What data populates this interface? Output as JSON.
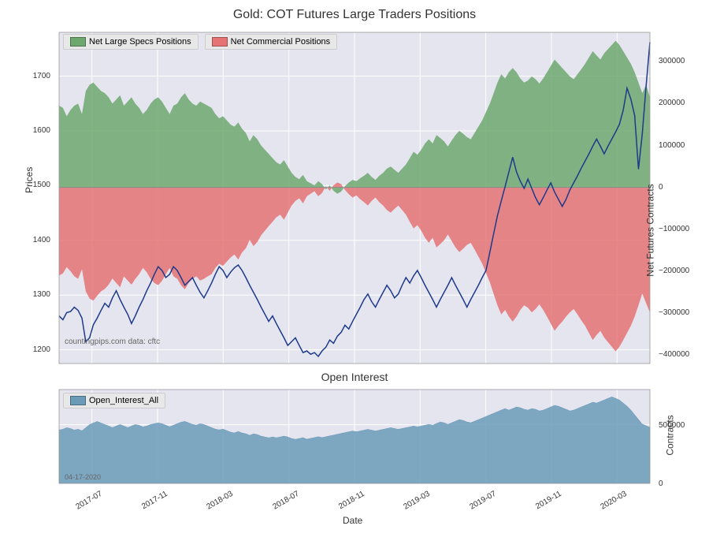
{
  "main_chart": {
    "title": "Gold: COT Futures Large Traders Positions",
    "type": "area+line",
    "ylabel_left": "Prices",
    "ylabel_right": "Net Futures Contracts",
    "background_color": "#e5e5ef",
    "grid_color": "#ffffff",
    "left_ylim": [
      1175,
      1780
    ],
    "left_yticks": [
      1200,
      1300,
      1400,
      1500,
      1600,
      1700
    ],
    "right_ylim": [
      -420000,
      370000
    ],
    "right_yticks": [
      -400000,
      -300000,
      -200000,
      -100000,
      0,
      100000,
      200000,
      300000
    ],
    "right_ytick_labels": [
      "−400000",
      "−300000",
      "−200000",
      "−100000",
      "0",
      "100000",
      "200000",
      "300000"
    ],
    "xticks": [
      "2017-07",
      "2017-11",
      "2018-03",
      "2018-07",
      "2018-11",
      "2019-03",
      "2019-07",
      "2019-11",
      "2020-03"
    ],
    "watermark": "countingpips.com    data: cftc",
    "legend": {
      "specs": {
        "label": "Net Large Specs Positions",
        "color": "#6fa86f"
      },
      "comm": {
        "label": "Net Commercial Positions",
        "color": "#e57373"
      }
    },
    "specs_area": {
      "color": "#6fa86f",
      "opacity": 0.85,
      "values": [
        195000,
        190000,
        170000,
        185000,
        195000,
        200000,
        175000,
        230000,
        245000,
        250000,
        240000,
        230000,
        225000,
        215000,
        200000,
        210000,
        220000,
        195000,
        205000,
        215000,
        200000,
        190000,
        175000,
        185000,
        200000,
        210000,
        215000,
        205000,
        190000,
        175000,
        195000,
        200000,
        215000,
        225000,
        210000,
        200000,
        195000,
        205000,
        200000,
        195000,
        190000,
        175000,
        165000,
        170000,
        160000,
        150000,
        145000,
        155000,
        140000,
        130000,
        110000,
        125000,
        115000,
        100000,
        90000,
        80000,
        70000,
        60000,
        55000,
        65000,
        50000,
        35000,
        25000,
        20000,
        30000,
        15000,
        10000,
        5000,
        15000,
        8000,
        -5000,
        5000,
        -8000,
        -15000,
        -10000,
        3000,
        12000,
        18000,
        15000,
        22000,
        28000,
        35000,
        25000,
        18000,
        28000,
        35000,
        45000,
        50000,
        42000,
        35000,
        45000,
        55000,
        70000,
        85000,
        78000,
        90000,
        105000,
        115000,
        105000,
        125000,
        118000,
        110000,
        98000,
        112000,
        125000,
        135000,
        128000,
        120000,
        115000,
        130000,
        145000,
        160000,
        180000,
        200000,
        225000,
        250000,
        270000,
        260000,
        275000,
        285000,
        275000,
        260000,
        250000,
        255000,
        265000,
        258000,
        248000,
        260000,
        275000,
        290000,
        305000,
        295000,
        285000,
        275000,
        265000,
        258000,
        270000,
        282000,
        295000,
        310000,
        325000,
        315000,
        305000,
        320000,
        330000,
        340000,
        350000,
        340000,
        325000,
        310000,
        295000,
        275000,
        250000,
        225000,
        245000,
        215000
      ]
    },
    "comm_area": {
      "color": "#e57373",
      "opacity": 0.85,
      "values": [
        -210000,
        -205000,
        -190000,
        -200000,
        -212000,
        -218000,
        -195000,
        -248000,
        -265000,
        -270000,
        -258000,
        -248000,
        -242000,
        -232000,
        -217000,
        -228000,
        -238000,
        -212000,
        -222000,
        -232000,
        -218000,
        -207000,
        -192000,
        -202000,
        -218000,
        -228000,
        -233000,
        -223000,
        -207000,
        -192000,
        -212000,
        -218000,
        -233000,
        -243000,
        -228000,
        -218000,
        -212000,
        -222000,
        -218000,
        -212000,
        -207000,
        -192000,
        -182000,
        -187000,
        -177000,
        -167000,
        -160000,
        -172000,
        -155000,
        -145000,
        -125000,
        -140000,
        -130000,
        -114000,
        -103000,
        -92000,
        -82000,
        -71000,
        -65000,
        -77000,
        -60000,
        -43000,
        -32000,
        -26000,
        -38000,
        -21000,
        -15000,
        -9000,
        -21000,
        -13000,
        3000,
        -8000,
        5000,
        12000,
        8000,
        -6000,
        -16000,
        -24000,
        -19000,
        -28000,
        -35000,
        -43000,
        -32000,
        -24000,
        -35000,
        -43000,
        -54000,
        -60000,
        -51000,
        -43000,
        -54000,
        -65000,
        -82000,
        -98000,
        -90000,
        -103000,
        -120000,
        -132000,
        -120000,
        -143000,
        -135000,
        -126000,
        -112000,
        -128000,
        -143000,
        -154000,
        -146000,
        -137000,
        -132000,
        -148000,
        -165000,
        -182000,
        -204000,
        -226000,
        -254000,
        -281000,
        -303000,
        -292000,
        -308000,
        -320000,
        -308000,
        -292000,
        -281000,
        -287000,
        -298000,
        -290000,
        -279000,
        -292000,
        -308000,
        -325000,
        -342000,
        -330000,
        -320000,
        -308000,
        -298000,
        -290000,
        -303000,
        -317000,
        -330000,
        -347000,
        -364000,
        -352000,
        -342000,
        -358000,
        -369000,
        -380000,
        -391000,
        -380000,
        -364000,
        -347000,
        -330000,
        -308000,
        -281000,
        -253000,
        -276000,
        -298000
      ]
    },
    "price_line": {
      "color": "#1e3a8a",
      "width": 1.5,
      "values": [
        1262,
        1255,
        1268,
        1270,
        1278,
        1272,
        1258,
        1215,
        1222,
        1246,
        1258,
        1272,
        1285,
        1278,
        1295,
        1308,
        1292,
        1278,
        1265,
        1248,
        1262,
        1278,
        1292,
        1308,
        1322,
        1338,
        1352,
        1345,
        1332,
        1338,
        1352,
        1345,
        1332,
        1318,
        1325,
        1332,
        1318,
        1305,
        1295,
        1308,
        1322,
        1338,
        1352,
        1345,
        1332,
        1342,
        1350,
        1355,
        1345,
        1332,
        1318,
        1305,
        1292,
        1278,
        1265,
        1252,
        1262,
        1248,
        1235,
        1222,
        1208,
        1215,
        1222,
        1208,
        1195,
        1198,
        1192,
        1195,
        1188,
        1198,
        1205,
        1218,
        1212,
        1225,
        1232,
        1245,
        1238,
        1252,
        1265,
        1278,
        1292,
        1302,
        1288,
        1278,
        1292,
        1305,
        1318,
        1308,
        1295,
        1302,
        1318,
        1332,
        1322,
        1335,
        1345,
        1332,
        1318,
        1305,
        1292,
        1278,
        1292,
        1305,
        1318,
        1332,
        1318,
        1305,
        1292,
        1278,
        1292,
        1305,
        1318,
        1332,
        1345,
        1378,
        1412,
        1445,
        1472,
        1498,
        1525,
        1552,
        1525,
        1508,
        1495,
        1512,
        1495,
        1478,
        1465,
        1478,
        1492,
        1505,
        1488,
        1475,
        1462,
        1475,
        1492,
        1505,
        1518,
        1532,
        1545,
        1558,
        1572,
        1585,
        1572,
        1558,
        1572,
        1585,
        1598,
        1612,
        1638,
        1678,
        1658,
        1628,
        1530,
        1595,
        1682,
        1762
      ]
    }
  },
  "oi_chart": {
    "title": "Open Interest",
    "type": "area",
    "ylabel_right": "Contracts",
    "xlabel": "Date",
    "background_color": "#e5e5ef",
    "grid_color": "#ffffff",
    "ylim": [
      0,
      800000
    ],
    "yticks": [
      0,
      500000
    ],
    "ytick_labels": [
      "0",
      "500000"
    ],
    "xticks": [
      "2017-07",
      "2017-11",
      "2018-03",
      "2018-07",
      "2018-11",
      "2019-03",
      "2019-07",
      "2019-11",
      "2020-03"
    ],
    "watermark": "04-17-2020",
    "legend": {
      "label": "Open_Interest_All",
      "color": "#6b9bb8"
    },
    "area": {
      "color": "#6b9bb8",
      "opacity": 0.85,
      "values": [
        455000,
        462000,
        475000,
        468000,
        455000,
        462000,
        449000,
        475000,
        502000,
        515000,
        528000,
        515000,
        502000,
        489000,
        476000,
        489000,
        502000,
        489000,
        476000,
        489000,
        502000,
        495000,
        482000,
        489000,
        502000,
        509000,
        516000,
        509000,
        496000,
        483000,
        496000,
        509000,
        522000,
        529000,
        516000,
        503000,
        496000,
        509000,
        502000,
        489000,
        476000,
        463000,
        456000,
        463000,
        450000,
        437000,
        430000,
        443000,
        430000,
        423000,
        410000,
        423000,
        416000,
        403000,
        396000,
        389000,
        396000,
        389000,
        396000,
        403000,
        396000,
        383000,
        376000,
        383000,
        390000,
        377000,
        384000,
        391000,
        398000,
        391000,
        398000,
        405000,
        412000,
        419000,
        426000,
        433000,
        440000,
        447000,
        440000,
        447000,
        454000,
        461000,
        454000,
        447000,
        454000,
        461000,
        468000,
        475000,
        468000,
        461000,
        468000,
        475000,
        482000,
        489000,
        482000,
        489000,
        496000,
        503000,
        496000,
        510000,
        524000,
        517000,
        503000,
        517000,
        530000,
        544000,
        537000,
        524000,
        517000,
        530000,
        544000,
        557000,
        571000,
        584000,
        598000,
        611000,
        625000,
        638000,
        625000,
        638000,
        652000,
        645000,
        632000,
        625000,
        638000,
        632000,
        618000,
        625000,
        638000,
        652000,
        665000,
        658000,
        645000,
        632000,
        618000,
        625000,
        638000,
        652000,
        665000,
        678000,
        692000,
        685000,
        698000,
        711000,
        725000,
        738000,
        725000,
        711000,
        685000,
        658000,
        625000,
        585000,
        545000,
        505000,
        492000,
        478000
      ]
    }
  }
}
